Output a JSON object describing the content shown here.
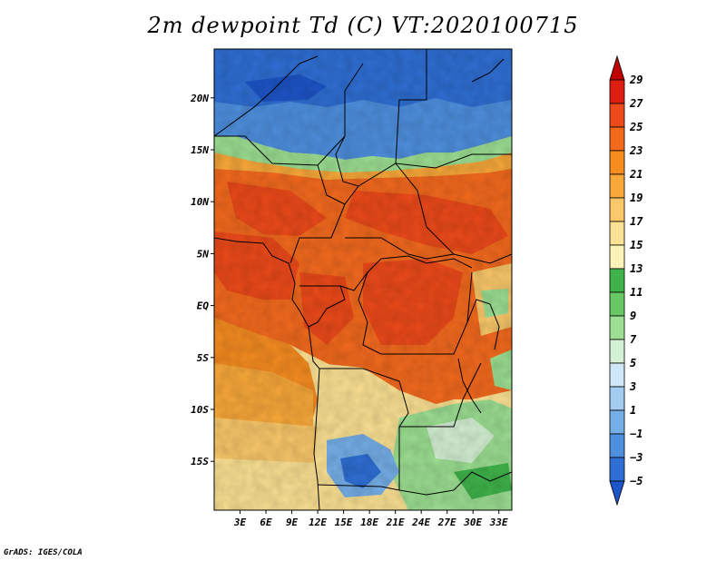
{
  "title": "2m dewpoint Td (C) VT:2020100715",
  "credit": "GrADS: IGES/COLA",
  "map": {
    "lat_labels": [
      "20N",
      "15N",
      "10N",
      "5N",
      "EQ",
      "5S",
      "10S",
      "15S"
    ],
    "lon_labels": [
      "3E",
      "6E",
      "9E",
      "12E",
      "15E",
      "18E",
      "21E",
      "24E",
      "27E",
      "30E",
      "33E"
    ],
    "lat_values": [
      20,
      15,
      10,
      5,
      0,
      -5,
      -10,
      -15
    ],
    "lon_values": [
      3,
      6,
      9,
      12,
      15,
      18,
      21,
      24,
      27,
      30,
      33
    ],
    "lat_range": [
      -19.7,
      24.7
    ],
    "lon_range": [
      0,
      34.5
    ]
  },
  "colorbar": {
    "labels": [
      "29",
      "27",
      "25",
      "23",
      "21",
      "19",
      "17",
      "15",
      "13",
      "11",
      "9",
      "7",
      "5",
      "3",
      "1",
      "−1",
      "−3",
      "−5"
    ],
    "colors": [
      "#c00000",
      "#dc1e12",
      "#ec4a1a",
      "#f36a1e",
      "#f58c20",
      "#f8a83a",
      "#fac86a",
      "#fbe193",
      "#fcf3b8",
      "#3fb34a",
      "#67c864",
      "#9cdf92",
      "#d4f1d4",
      "#cfe7f7",
      "#a3cdf0",
      "#75afe8",
      "#4e8fde",
      "#2f6fd4",
      "#1d55c8"
    ]
  }
}
